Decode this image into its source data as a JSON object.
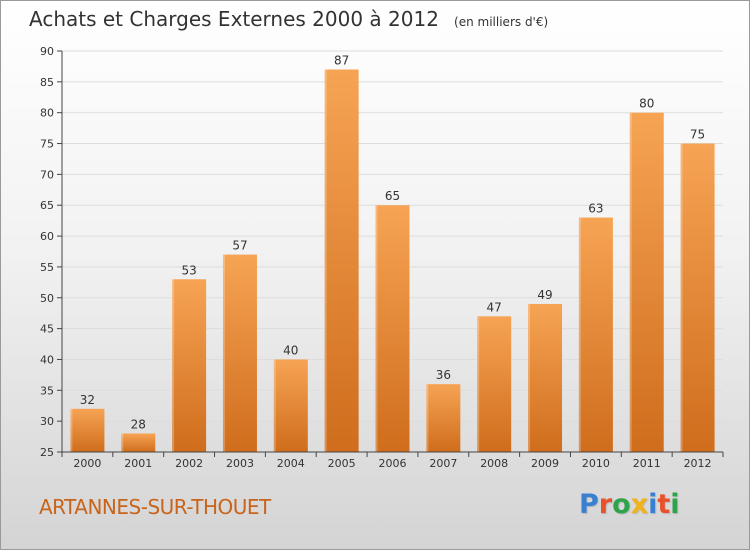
{
  "header": {
    "title": "Achats et Charges Externes 2000 à 2012",
    "subtitle": "(en milliers d'€)"
  },
  "footer": {
    "commune": "ARTANNES-SUR-THOUET",
    "brand": "Proxiti",
    "brand_colors": [
      "#3a7fd0",
      "#e8512a",
      "#2ea34a",
      "#f0b21a",
      "#3a7fd0",
      "#e8512a",
      "#2ea34a"
    ]
  },
  "colors": {
    "bar_top": "#f6a454",
    "bar_bottom": "#cf6d1c",
    "axis": "#444444",
    "grid": "#dddddd",
    "text": "#333333",
    "accent": "#c8641c"
  },
  "chart_data": {
    "type": "bar",
    "title": "Achats et Charges Externes 2000 à 2012",
    "subtitle": "(en milliers d'€)",
    "categories": [
      "2000",
      "2001",
      "2002",
      "2003",
      "2004",
      "2005",
      "2006",
      "2007",
      "2008",
      "2009",
      "2010",
      "2011",
      "2012"
    ],
    "values": [
      32,
      28,
      53,
      57,
      40,
      87,
      65,
      36,
      47,
      49,
      63,
      80,
      75
    ],
    "data_labels": [
      "32",
      "28",
      "53",
      "57",
      "40",
      "87",
      "65",
      "36",
      "47",
      "49",
      "63",
      "80",
      "75"
    ],
    "ylim": [
      25,
      90
    ],
    "yticks": [
      25,
      30,
      35,
      40,
      45,
      50,
      55,
      60,
      65,
      70,
      75,
      80,
      85,
      90
    ],
    "ytick_labels": [
      "25",
      "30",
      "35",
      "40",
      "45",
      "50",
      "55",
      "60",
      "65",
      "70",
      "75",
      "80",
      "85",
      "90"
    ],
    "grid": true,
    "legend": "none"
  }
}
